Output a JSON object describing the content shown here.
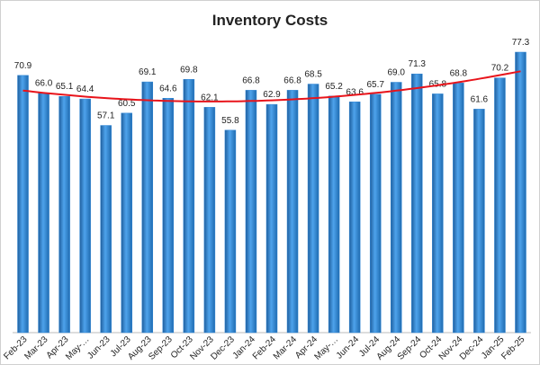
{
  "chart_data": {
    "type": "bar",
    "title": "Inventory Costs",
    "categories": [
      "Feb-23",
      "Mar-23",
      "Apr-23",
      "May-…",
      "Jun-23",
      "Jul-23",
      "Aug-23",
      "Sep-23",
      "Oct-23",
      "Nov-23",
      "Dec-23",
      "Jan-24",
      "Feb-24",
      "Mar-24",
      "Apr-24",
      "May-…",
      "Jun-24",
      "Jul-24",
      "Aug-24",
      "Sep-24",
      "Oct-24",
      "Nov-24",
      "Dec-24",
      "Jan-25",
      "Feb-25"
    ],
    "values": [
      70.9,
      66,
      65.1,
      64.4,
      57.1,
      60.5,
      69.1,
      64.6,
      69.8,
      62.1,
      55.8,
      66.8,
      62.9,
      66.8,
      68.5,
      65.2,
      63.6,
      65.7,
      69,
      71.3,
      65.8,
      68.8,
      61.6,
      70.2,
      77.3
    ],
    "value_labels": [
      "70.9",
      "66.0",
      "65.1",
      "64.4",
      "57.1",
      "60.5",
      "69.1",
      "64.6",
      "69.8",
      "62.1",
      "55.8",
      "66.8",
      "62.9",
      "66.8",
      "68.5",
      "65.2",
      "63.6",
      "65.7",
      "69.0",
      "71.3",
      "65.8",
      "68.8",
      "61.6",
      "70.2",
      "77.3"
    ],
    "color": "#2f86d6",
    "trendline": {
      "type": "polynomial",
      "order": 2,
      "color": "#e8141b"
    }
  }
}
